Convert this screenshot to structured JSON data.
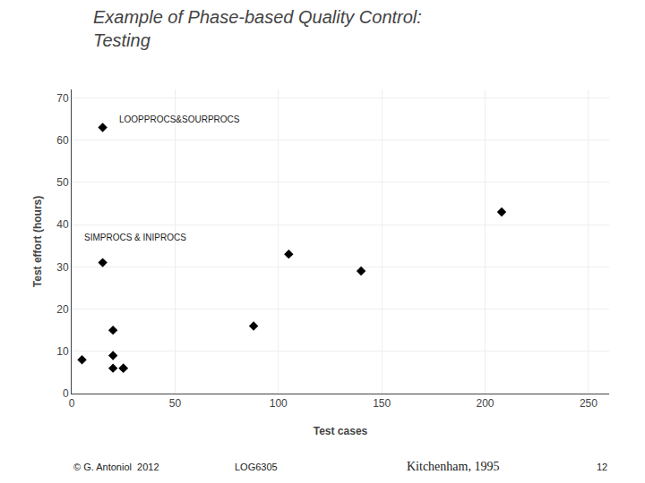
{
  "chart_data": {
    "type": "scatter",
    "title": "Example of Phase-based Quality Control:\nTesting",
    "x_label": "Test cases",
    "y_label": "Test effort (hours)",
    "x": [
      5,
      15,
      15,
      20,
      20,
      20,
      25,
      25,
      88,
      105,
      140,
      208
    ],
    "values": [
      8,
      63,
      31,
      15,
      9,
      6,
      6,
      6,
      16,
      33,
      29,
      43
    ],
    "marker": "diamond",
    "color": "black",
    "xlim": [
      0,
      260
    ],
    "ylim": [
      0,
      72
    ],
    "xticks": [
      0,
      50,
      100,
      150,
      200,
      250
    ],
    "yticks": [
      0,
      10,
      20,
      30,
      40,
      50,
      60,
      70
    ],
    "grid": true,
    "annotations": [
      {
        "text": "LOOPPROCS&SOURPROCS",
        "x": 22,
        "y": 65
      },
      {
        "text": "SIMPROCS & INIPROCS",
        "x": 5,
        "y": 37
      }
    ],
    "footer": [
      "© G. Antoniol  2012",
      "LOG6305",
      "Kitchenham, 1995",
      "12"
    ]
  }
}
